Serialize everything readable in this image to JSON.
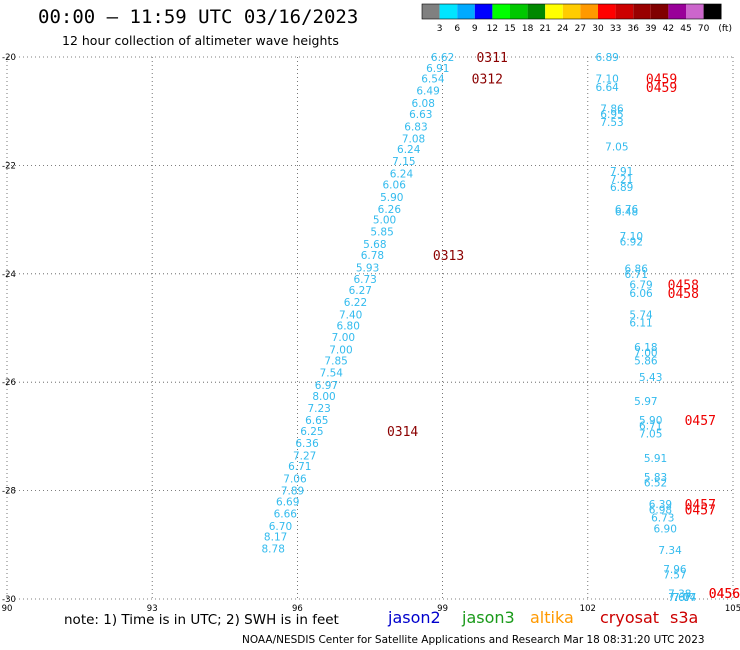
{
  "header": {
    "title": "00:00 – 11:59 UTC 03/16/2023",
    "subtitle": "12 hour collection of altimeter wave heights"
  },
  "footer": {
    "note": "note:  1) Time is in UTC;  2) SWH is in feet",
    "credit": "NOAA/NESDIS Center for Satellite Applications and Research    Mar 18 08:31:20 UTC 2023",
    "satellites": [
      {
        "name": "jason2",
        "color": "#0000cc"
      },
      {
        "name": "jason3",
        "color": "#1a9a1a"
      },
      {
        "name": "altika",
        "color": "#ff9900"
      },
      {
        "name": "cryosat",
        "color": "#cc0000"
      },
      {
        "name": "s3a",
        "color": "#cc0000"
      }
    ]
  },
  "colorbar": {
    "unit": "(ft)",
    "labels": [
      "3",
      "6",
      "9",
      "12",
      "15",
      "18",
      "21",
      "24",
      "27",
      "30",
      "33",
      "36",
      "39",
      "42",
      "45",
      "70"
    ],
    "colors": [
      "#808080",
      "#00e5ff",
      "#00aaff",
      "#0000ff",
      "#00ff00",
      "#00c800",
      "#008800",
      "#ffff00",
      "#ffcc00",
      "#ff9900",
      "#ff0000",
      "#cc0000",
      "#990000",
      "#800000",
      "#990099",
      "#cc66cc",
      "#000000"
    ]
  },
  "chart_data": {
    "type": "scatter",
    "xlim": [
      90,
      105
    ],
    "ylim": [
      -30,
      -20
    ],
    "xticks": [
      90,
      93,
      96,
      99,
      102,
      105
    ],
    "xtick_labels": [
      "90",
      "93",
      "96",
      "99",
      "102",
      "105"
    ],
    "yticks": [
      -20,
      -22,
      -24,
      -26,
      -28,
      -30
    ],
    "ytick_labels": [
      "-20",
      "-22",
      "-24",
      "-26",
      "-28",
      "-30"
    ],
    "grid": true,
    "point_color": "#33bbee",
    "series": [
      {
        "points": [
          {
            "x": 99.0,
            "y": -20.0,
            "label": "6.62"
          },
          {
            "x": 98.9,
            "y": -20.2,
            "label": "6.91"
          },
          {
            "x": 98.8,
            "y": -20.4,
            "label": "6.54"
          },
          {
            "x": 98.7,
            "y": -20.62,
            "label": "6.49"
          },
          {
            "x": 98.6,
            "y": -20.85,
            "label": "6.08"
          },
          {
            "x": 98.55,
            "y": -21.05,
            "label": "6.63"
          },
          {
            "x": 98.45,
            "y": -21.28,
            "label": "6.83"
          },
          {
            "x": 98.4,
            "y": -21.5,
            "label": "7.08"
          },
          {
            "x": 98.3,
            "y": -21.7,
            "label": "6.24"
          },
          {
            "x": 98.2,
            "y": -21.92,
            "label": "7.15"
          },
          {
            "x": 98.15,
            "y": -22.15,
            "label": "6.24"
          },
          {
            "x": 98.0,
            "y": -22.35,
            "label": "6.06"
          },
          {
            "x": 97.95,
            "y": -22.58,
            "label": "5.90"
          },
          {
            "x": 97.9,
            "y": -22.8,
            "label": "6.26"
          },
          {
            "x": 97.8,
            "y": -23.0,
            "label": "5.00"
          },
          {
            "x": 97.75,
            "y": -23.22,
            "label": "5.85"
          },
          {
            "x": 97.6,
            "y": -23.45,
            "label": "5.68"
          },
          {
            "x": 97.55,
            "y": -23.65,
            "label": "6.78"
          },
          {
            "x": 97.45,
            "y": -23.88,
            "label": "5.93"
          },
          {
            "x": 97.4,
            "y": -24.1,
            "label": "6.73"
          },
          {
            "x": 97.3,
            "y": -24.3,
            "label": "6.27"
          },
          {
            "x": 97.2,
            "y": -24.52,
            "label": "6.22"
          },
          {
            "x": 97.1,
            "y": -24.75,
            "label": "7.40"
          },
          {
            "x": 97.05,
            "y": -24.95,
            "label": "6.80"
          },
          {
            "x": 96.95,
            "y": -25.17,
            "label": "7.00"
          },
          {
            "x": 96.9,
            "y": -25.4,
            "label": "7.00"
          },
          {
            "x": 96.8,
            "y": -25.6,
            "label": "7.85"
          },
          {
            "x": 96.7,
            "y": -25.82,
            "label": "7.54"
          },
          {
            "x": 96.6,
            "y": -26.05,
            "label": "6.97"
          },
          {
            "x": 96.55,
            "y": -26.25,
            "label": "8.00"
          },
          {
            "x": 96.45,
            "y": -26.48,
            "label": "7.23"
          },
          {
            "x": 96.4,
            "y": -26.7,
            "label": "6.65"
          },
          {
            "x": 96.3,
            "y": -26.9,
            "label": "6.25"
          },
          {
            "x": 96.2,
            "y": -27.12,
            "label": "6.36"
          },
          {
            "x": 96.15,
            "y": -27.35,
            "label": "7.27"
          },
          {
            "x": 96.05,
            "y": -27.55,
            "label": "6.71"
          },
          {
            "x": 95.95,
            "y": -27.78,
            "label": "7.06"
          },
          {
            "x": 95.9,
            "y": -28.0,
            "label": "7.89"
          },
          {
            "x": 95.8,
            "y": -28.2,
            "label": "6.69"
          },
          {
            "x": 95.75,
            "y": -28.42,
            "label": "6.66"
          },
          {
            "x": 95.65,
            "y": -28.65,
            "label": "6.70"
          },
          {
            "x": 95.55,
            "y": -28.85,
            "label": "8.17"
          },
          {
            "x": 95.5,
            "y": -29.07,
            "label": "8.78"
          }
        ]
      },
      {
        "points": [
          {
            "x": 102.4,
            "y": -20.0,
            "label": "6.89"
          },
          {
            "x": 102.4,
            "y": -20.4,
            "label": "7.10"
          },
          {
            "x": 102.4,
            "y": -20.55,
            "label": "6.64"
          },
          {
            "x": 102.5,
            "y": -20.95,
            "label": "7.86"
          },
          {
            "x": 102.5,
            "y": -21.05,
            "label": "6.95"
          },
          {
            "x": 102.5,
            "y": -21.2,
            "label": "7.53"
          },
          {
            "x": 102.6,
            "y": -21.65,
            "label": "7.05"
          },
          {
            "x": 102.7,
            "y": -22.1,
            "label": "7.91"
          },
          {
            "x": 102.7,
            "y": -22.25,
            "label": "7.21"
          },
          {
            "x": 102.7,
            "y": -22.4,
            "label": "6.89"
          },
          {
            "x": 102.8,
            "y": -22.8,
            "label": "6.76"
          },
          {
            "x": 102.8,
            "y": -22.85,
            "label": "6.48"
          },
          {
            "x": 102.9,
            "y": -23.3,
            "label": "7.10"
          },
          {
            "x": 102.9,
            "y": -23.4,
            "label": "6.92"
          },
          {
            "x": 103.0,
            "y": -23.9,
            "label": "6.86"
          },
          {
            "x": 103.0,
            "y": -24.0,
            "label": "6.71"
          },
          {
            "x": 103.1,
            "y": -24.2,
            "label": "6.79"
          },
          {
            "x": 103.1,
            "y": -24.35,
            "label": "6.06"
          },
          {
            "x": 103.1,
            "y": -24.75,
            "label": "5.74"
          },
          {
            "x": 103.1,
            "y": -24.9,
            "label": "6.11"
          },
          {
            "x": 103.2,
            "y": -25.35,
            "label": "6.18"
          },
          {
            "x": 103.2,
            "y": -25.45,
            "label": "7.00"
          },
          {
            "x": 103.2,
            "y": -25.6,
            "label": "5.86"
          },
          {
            "x": 103.3,
            "y": -25.9,
            "label": "5.43"
          },
          {
            "x": 103.2,
            "y": -26.35,
            "label": "5.97"
          },
          {
            "x": 103.3,
            "y": -26.7,
            "label": "5.90"
          },
          {
            "x": 103.3,
            "y": -26.8,
            "label": "6.71"
          },
          {
            "x": 103.3,
            "y": -26.95,
            "label": "7.05"
          },
          {
            "x": 103.4,
            "y": -27.4,
            "label": "5.91"
          },
          {
            "x": 103.4,
            "y": -27.75,
            "label": "5.83"
          },
          {
            "x": 103.4,
            "y": -27.85,
            "label": "6.52"
          },
          {
            "x": 103.5,
            "y": -28.25,
            "label": "6.39"
          },
          {
            "x": 103.5,
            "y": -28.35,
            "label": "6.98"
          },
          {
            "x": 103.55,
            "y": -28.5,
            "label": "6.73"
          },
          {
            "x": 103.6,
            "y": -28.7,
            "label": "6.90"
          },
          {
            "x": 103.7,
            "y": -29.1,
            "label": "7.34"
          },
          {
            "x": 103.8,
            "y": -29.45,
            "label": "7.96"
          },
          {
            "x": 103.8,
            "y": -29.55,
            "label": "7.57"
          },
          {
            "x": 103.9,
            "y": -29.9,
            "label": "7.38"
          },
          {
            "x": 103.9,
            "y": -30.0,
            "label": "7.67"
          },
          {
            "x": 104.0,
            "y": -30.35,
            "label": "7.77"
          },
          {
            "x": 104.0,
            "y": -30.65,
            "label": "7.04"
          }
        ]
      }
    ],
    "pass_labels": [
      {
        "x": 99.7,
        "y": -20.0,
        "label": "0311",
        "color": "#8b0000"
      },
      {
        "x": 99.6,
        "y": -20.4,
        "label": "0312",
        "color": "#8b0000"
      },
      {
        "x": 98.8,
        "y": -23.65,
        "label": "0313",
        "color": "#8b0000"
      },
      {
        "x": 97.85,
        "y": -26.9,
        "label": "0314",
        "color": "#8b0000"
      },
      {
        "x": 103.2,
        "y": -20.4,
        "label": "0459",
        "color": "#ee0000"
      },
      {
        "x": 103.2,
        "y": -20.55,
        "label": "0459",
        "color": "#ee0000"
      },
      {
        "x": 103.65,
        "y": -24.2,
        "label": "0458",
        "color": "#ee0000"
      },
      {
        "x": 103.65,
        "y": -24.35,
        "label": "0458",
        "color": "#ee0000"
      },
      {
        "x": 104.0,
        "y": -26.7,
        "label": "0457",
        "color": "#ee0000"
      },
      {
        "x": 104.0,
        "y": -28.25,
        "label": "0457",
        "color": "#ee0000"
      },
      {
        "x": 104.0,
        "y": -28.35,
        "label": "0457",
        "color": "#ee0000"
      },
      {
        "x": 104.5,
        "y": -30.35,
        "label": "0456",
        "color": "#ee0000"
      },
      {
        "x": 104.5,
        "y": -30.65,
        "label": "0456",
        "color": "#ee0000"
      }
    ]
  }
}
